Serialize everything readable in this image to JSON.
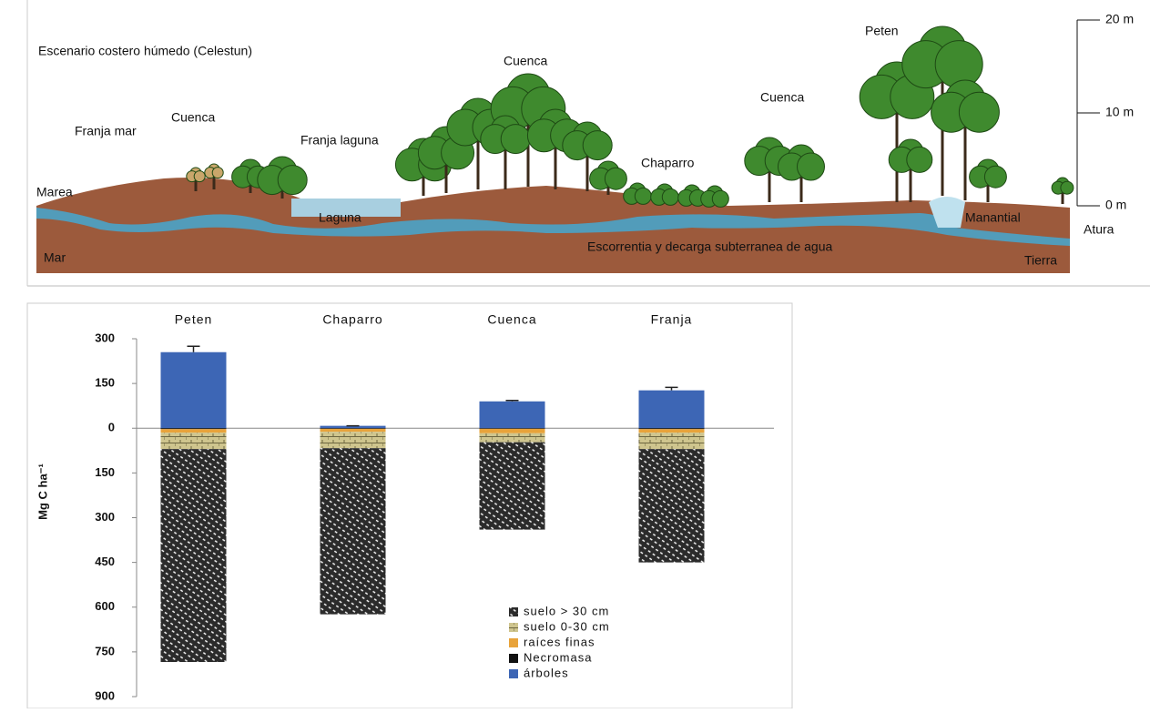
{
  "diagram": {
    "title": "Escenario costero húmedo (Celestun)",
    "labels": [
      "Franja mar",
      "Cuenca",
      "Franja laguna",
      "Cuenca",
      "Chaparro",
      "Cuenca",
      "Peten",
      "Marea",
      "Laguna",
      "Mar",
      "Escorrentia y decarga subterranea de agua",
      "Manantial",
      "Tierra"
    ],
    "scale": {
      "label": "Atura",
      "ylim": [
        0,
        20
      ],
      "ticks": [
        {
          "value": 0,
          "label": "0 m"
        },
        {
          "value": 10,
          "label": "10 m"
        },
        {
          "value": 20,
          "label": "20 m"
        }
      ]
    }
  },
  "chart_data": {
    "type": "bar",
    "stacked": true,
    "y_label": "Mg C ha⁻¹",
    "categories": [
      "Peten",
      "Chaparro",
      "Cuenca",
      "Franja"
    ],
    "series": [
      {
        "name": "suelo > 30 cm",
        "color": "#2b2b2b",
        "values": [
          -714,
          -557,
          -293,
          -380
        ]
      },
      {
        "name": "suelo 0-30 cm",
        "color": "#cfc58e",
        "values": [
          -55,
          -55,
          -30,
          -55
        ]
      },
      {
        "name": "raíces finas",
        "color": "#e8a33a",
        "values": [
          -12,
          -10,
          -15,
          -12
        ]
      },
      {
        "name": "Necromasa",
        "color": "#111111",
        "values": [
          -3,
          -2,
          -2,
          -3
        ]
      },
      {
        "name": "árboles",
        "color": "#3d66b5",
        "values": [
          255,
          8,
          90,
          127
        ],
        "errors": [
          20,
          0,
          3,
          10
        ]
      }
    ],
    "ylim": [
      -900,
      300
    ],
    "yticks": [
      300,
      150,
      0,
      {
        "value": -150,
        "label": "150"
      },
      {
        "value": -300,
        "label": "300"
      },
      {
        "value": -450,
        "label": "450"
      },
      {
        "value": -600,
        "label": "600"
      },
      {
        "value": -750,
        "label": "750"
      },
      {
        "value": -900,
        "label": "900"
      }
    ]
  }
}
